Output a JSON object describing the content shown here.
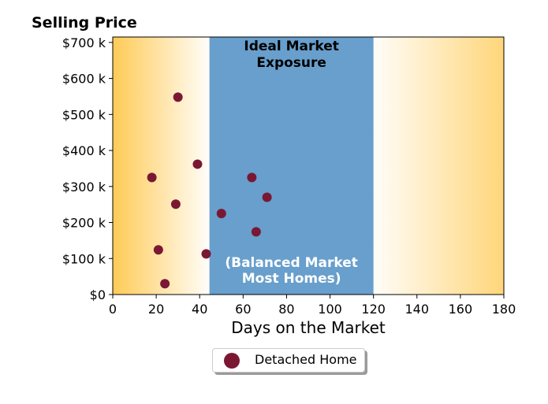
{
  "chart_data": {
    "type": "scatter",
    "title": "Selling Price",
    "xlabel": "Days on the Market",
    "ylabel": "",
    "xlim": [
      0,
      180
    ],
    "ylim": [
      0,
      715000
    ],
    "x_ticks": [
      0,
      20,
      40,
      60,
      80,
      100,
      120,
      140,
      160,
      180
    ],
    "x_tick_labels": [
      "0",
      "20",
      "40",
      "60",
      "80",
      "100",
      "120",
      "140",
      "160",
      "180"
    ],
    "y_ticks": [
      0,
      100000,
      200000,
      300000,
      400000,
      500000,
      600000,
      700000
    ],
    "y_tick_labels": [
      "$0",
      "$100 k",
      "$200 k",
      "$300 k",
      "$400 k",
      "$500 k",
      "$600 k",
      "$700 k"
    ],
    "grid": false,
    "legend": {
      "position": "bottom-center",
      "entries": [
        "Detached Home"
      ]
    },
    "series": [
      {
        "name": "Detached Home",
        "color": "#7a1834",
        "points": [
          {
            "x": 30,
            "y": 548000
          },
          {
            "x": 39,
            "y": 362000
          },
          {
            "x": 18,
            "y": 325000
          },
          {
            "x": 64,
            "y": 325000
          },
          {
            "x": 71,
            "y": 270000
          },
          {
            "x": 29,
            "y": 251000
          },
          {
            "x": 50,
            "y": 225000
          },
          {
            "x": 66,
            "y": 174000
          },
          {
            "x": 21,
            "y": 124000
          },
          {
            "x": 43,
            "y": 113000
          },
          {
            "x": 24,
            "y": 30000
          }
        ]
      }
    ],
    "regions": [
      {
        "x_start": 0,
        "x_end": 44.5,
        "style": "gradient",
        "color": "#ffc84d",
        "fade_to": "right"
      },
      {
        "x_start": 44.5,
        "x_end": 120,
        "style": "solid",
        "color": "#689fcc"
      },
      {
        "x_start": 120,
        "x_end": 180,
        "style": "gradient",
        "color": "#ffc84d",
        "fade_to": "left"
      }
    ],
    "annotations": [
      {
        "lines": [
          "Ideal Market",
          "Exposure"
        ],
        "color": "#000000"
      },
      {
        "lines": [
          "(Balanced Market",
          "Most Homes)"
        ],
        "color": "#ffffff"
      }
    ]
  }
}
